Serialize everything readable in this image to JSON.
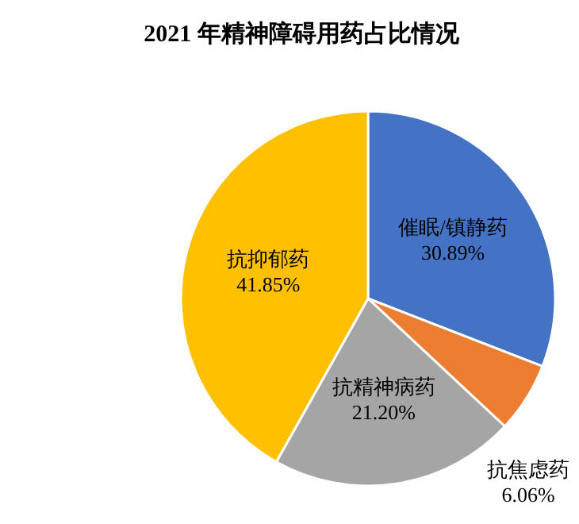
{
  "chart_data": {
    "type": "pie",
    "title": "2021 年精神障碍用药占比情况",
    "categories": [
      "催眠/镇静药",
      "抗焦虑药",
      "抗精神病药",
      "抗抑郁药"
    ],
    "values": [
      30.89,
      6.06,
      21.2,
      41.85
    ],
    "value_labels": [
      "30.89%",
      "6.06%",
      "21.20%",
      "41.85%"
    ],
    "colors": [
      "#4472c4",
      "#ed7d31",
      "#a5a5a5",
      "#ffc000"
    ]
  }
}
